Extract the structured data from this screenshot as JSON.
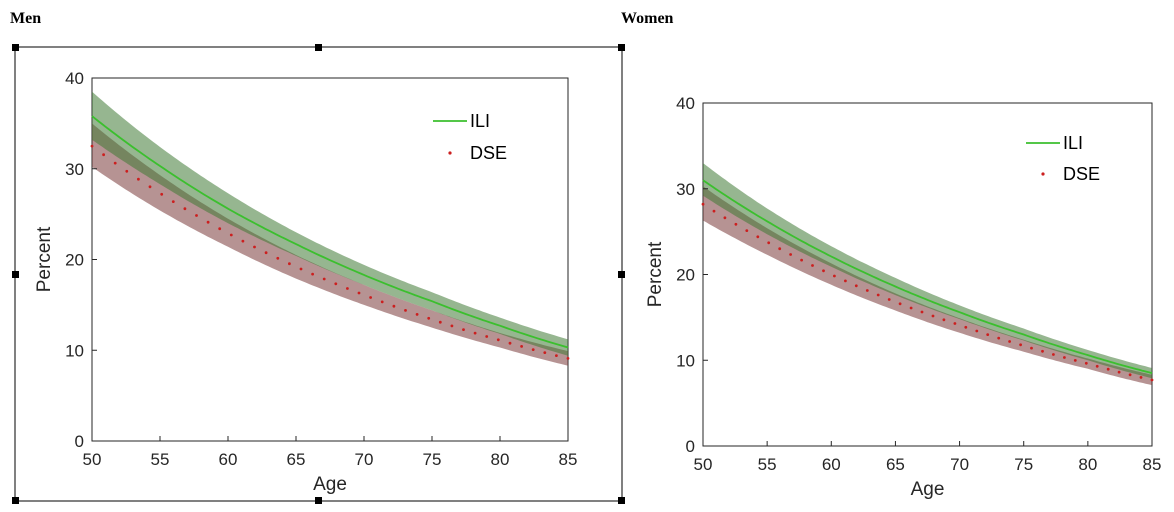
{
  "panels": [
    {
      "title": "Men"
    },
    {
      "title": "Women"
    }
  ],
  "colors": {
    "ili_line": "#3bbf2e",
    "ili_band": "#3f7a35",
    "dse_dots": "#cc1f1f",
    "dse_band": "#7a3a3a",
    "axis": "#262626",
    "selection_handle": "#000000"
  },
  "chart_data": [
    {
      "type": "line",
      "title": "Men",
      "xlabel": "Age",
      "ylabel": "Percent",
      "xlim": [
        50,
        85
      ],
      "ylim": [
        0,
        40
      ],
      "xticks": [
        50,
        55,
        60,
        65,
        70,
        75,
        80,
        85
      ],
      "yticks": [
        0,
        10,
        20,
        30,
        40
      ],
      "grid": false,
      "legend_position": "top-right",
      "x": [
        50,
        55,
        60,
        65,
        70,
        75,
        80,
        85
      ],
      "series": [
        {
          "name": "ILI",
          "style": "solid-line",
          "values": [
            35.8,
            30.3,
            25.6,
            21.7,
            18.3,
            15.4,
            12.7,
            10.3
          ],
          "band_lower": [
            33.2,
            28.3,
            24.0,
            20.4,
            17.2,
            14.4,
            11.8,
            9.4
          ],
          "band_upper": [
            38.5,
            32.4,
            27.3,
            23.0,
            19.4,
            16.4,
            13.6,
            11.2
          ]
        },
        {
          "name": "DSE",
          "style": "dotted",
          "values": [
            32.5,
            27.3,
            22.9,
            19.2,
            16.1,
            13.4,
            11.1,
            9.1
          ],
          "band_lower": [
            30.2,
            25.4,
            21.4,
            17.9,
            15.0,
            12.5,
            10.3,
            8.3
          ],
          "band_upper": [
            35.0,
            29.3,
            24.5,
            20.5,
            17.2,
            14.4,
            11.9,
            9.9
          ]
        }
      ]
    },
    {
      "type": "line",
      "title": "Women",
      "xlabel": "Age",
      "ylabel": "Percent",
      "xlim": [
        50,
        85
      ],
      "ylim": [
        0,
        40
      ],
      "xticks": [
        50,
        55,
        60,
        65,
        70,
        75,
        80,
        85
      ],
      "yticks": [
        0,
        10,
        20,
        30,
        40
      ],
      "grid": false,
      "legend_position": "top-right",
      "x": [
        50,
        55,
        60,
        65,
        70,
        75,
        80,
        85
      ],
      "series": [
        {
          "name": "ILI",
          "style": "solid-line",
          "values": [
            31.0,
            26.2,
            22.1,
            18.6,
            15.6,
            13.0,
            10.6,
            8.5
          ],
          "band_lower": [
            29.2,
            24.7,
            20.9,
            17.6,
            14.8,
            12.3,
            10.0,
            7.9
          ],
          "band_upper": [
            33.0,
            27.7,
            23.3,
            19.6,
            16.4,
            13.7,
            11.2,
            9.1
          ]
        },
        {
          "name": "DSE",
          "style": "dotted",
          "values": [
            28.2,
            23.8,
            20.0,
            16.8,
            14.1,
            11.7,
            9.6,
            7.7
          ],
          "band_lower": [
            26.3,
            22.3,
            18.8,
            15.8,
            13.2,
            11.0,
            9.0,
            7.1
          ],
          "band_upper": [
            30.3,
            25.4,
            21.3,
            17.8,
            14.9,
            12.4,
            10.2,
            8.3
          ]
        }
      ]
    }
  ]
}
